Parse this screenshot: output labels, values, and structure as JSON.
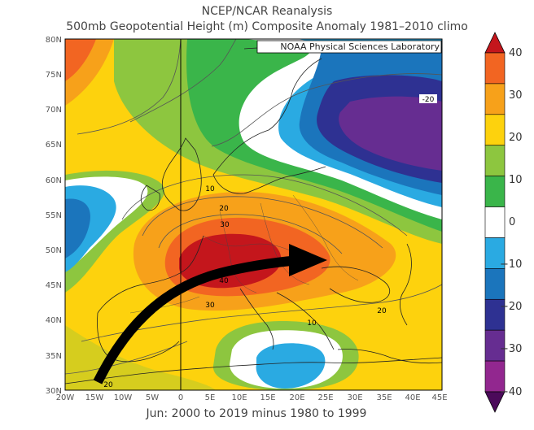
{
  "title": "NCEP/NCAR Reanalysis",
  "subtitle": "500mb Geopotential Height (m) Composite Anomaly 1981–2010 climo",
  "credit": "NOAA Physical Sciences Laboratory",
  "footer": "Jun: 2000 to 2019 minus 1980 to 1999",
  "lat_ticks": [
    "80N",
    "75N",
    "70N",
    "65N",
    "60N",
    "55N",
    "50N",
    "45N",
    "40N",
    "35N",
    "30N"
  ],
  "lon_ticks": [
    "20W",
    "15W",
    "10W",
    "5W",
    "0",
    "5E",
    "10E",
    "15E",
    "20E",
    "25E",
    "30E",
    "35E",
    "40E",
    "45E"
  ],
  "contour_labels": [
    "-20",
    "10",
    "20",
    "30",
    "40",
    "30",
    "20",
    "10",
    "20"
  ],
  "colorbar": {
    "labels": [
      "40",
      "30",
      "20",
      "10",
      "0",
      "−10",
      "−20",
      "−30",
      "−40"
    ],
    "colors": [
      "#c4161c",
      "#f26522",
      "#f7a11a",
      "#fdd20d",
      "#8dc63f",
      "#3ab54a",
      "#ffffff",
      "#2aaae2",
      "#1b75bc",
      "#2e3192",
      "#662d91",
      "#92278f",
      "#4b0a5a"
    ]
  },
  "chart_data": {
    "type": "heatmap",
    "title": "NCEP/NCAR Reanalysis",
    "subtitle": "500mb Geopotential Height (m) Composite Anomaly 1981–2010 climo",
    "variable": "500mb Geopotential Height Anomaly (m)",
    "period": "Jun: 2000 to 2019 minus 1980 to 1999",
    "lon_range": [
      -20,
      45
    ],
    "lat_range": [
      30,
      80
    ],
    "color_range": [
      -40,
      40
    ],
    "contour_interval": 5,
    "features": [
      {
        "kind": "high",
        "lon": 7,
        "lat": 47,
        "value": 40
      },
      {
        "kind": "low",
        "lon": 30,
        "lat": 66,
        "value": -20
      },
      {
        "kind": "low",
        "lon": -20,
        "lat": 53,
        "value": -10
      },
      {
        "kind": "low",
        "lon": 17,
        "lat": 34,
        "value": -10
      }
    ]
  }
}
